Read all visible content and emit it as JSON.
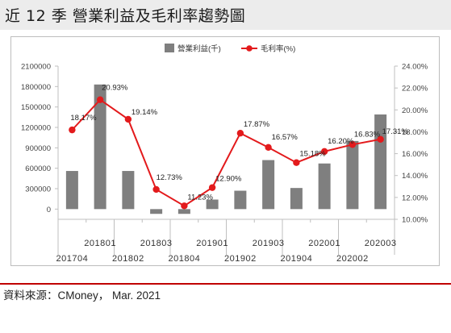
{
  "header": {
    "title": "近 12 季  營業利益及毛利率趨勢圖"
  },
  "footer": {
    "source": "資料來源：CMoney， Mar. 2021"
  },
  "colors": {
    "bar": "#7f7f7f",
    "line": "#e31a1c",
    "title_bg": "#ececec",
    "rule": "#c00000"
  },
  "chart_data": {
    "type": "bar",
    "categories": [
      "201704",
      "201801",
      "201802",
      "201803",
      "201804",
      "201901",
      "201902",
      "201903",
      "201904",
      "202001",
      "202002",
      "202003"
    ],
    "legend_position": "top",
    "grid": false,
    "series": [
      {
        "name": "營業利益(千)",
        "type": "bar",
        "axis": "left",
        "values": [
          560000,
          1830000,
          560000,
          -70000,
          -70000,
          140000,
          270000,
          720000,
          310000,
          670000,
          1000000,
          1390000
        ]
      },
      {
        "name": "毛利率(%)",
        "type": "line",
        "axis": "right",
        "values": [
          18.17,
          20.93,
          19.14,
          12.73,
          11.23,
          12.9,
          17.87,
          16.57,
          15.18,
          16.2,
          16.83,
          17.31
        ],
        "labels": [
          "18.17%",
          "20.93%",
          "19.14%",
          "12.73%",
          "11.23%",
          "12.90%",
          "17.87%",
          "16.57%",
          "15.18%",
          "16.20%",
          "16.83%",
          "17.31%"
        ]
      }
    ],
    "y_left": {
      "ylim": [
        -150000,
        2100000
      ],
      "ticks": [
        0,
        300000,
        600000,
        900000,
        1200000,
        1500000,
        1800000,
        2100000
      ],
      "tick_labels": [
        "0",
        "300000",
        "600000",
        "900000",
        "1200000",
        "1500000",
        "1800000",
        "2100000"
      ]
    },
    "y_right": {
      "ylim": [
        10,
        24
      ],
      "ticks": [
        10,
        12,
        14,
        16,
        18,
        20,
        22,
        24
      ],
      "tick_labels": [
        "10.00%",
        "12.00%",
        "14.00%",
        "16.00%",
        "18.00%",
        "20.00%",
        "22.00%",
        "24.00%"
      ]
    }
  }
}
